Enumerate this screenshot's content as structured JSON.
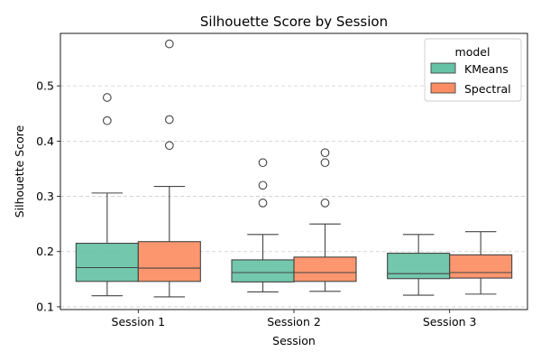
{
  "chart_data": {
    "type": "box",
    "title": "Silhouette Score by Session",
    "xlabel": "Session",
    "ylabel": "Silhouette Score",
    "categories": [
      "Session 1",
      "Session 2",
      "Session 3"
    ],
    "ylim": [
      0.095,
      0.595
    ],
    "yticks": [
      0.1,
      0.2,
      0.3,
      0.4,
      0.5
    ],
    "grid": "y-dashed",
    "legend": {
      "title": "model",
      "position": "top-right"
    },
    "series": [
      {
        "name": "KMeans",
        "color": "#66c2a5",
        "boxes": [
          {
            "whislo": 0.12,
            "q1": 0.146,
            "median": 0.171,
            "q3": 0.215,
            "whishi": 0.306,
            "fliers": [
              0.479,
              0.437
            ]
          },
          {
            "whislo": 0.127,
            "q1": 0.145,
            "median": 0.162,
            "q3": 0.185,
            "whishi": 0.231,
            "fliers": [
              0.361,
              0.32,
              0.288
            ]
          },
          {
            "whislo": 0.121,
            "q1": 0.151,
            "median": 0.16,
            "q3": 0.197,
            "whishi": 0.231,
            "fliers": []
          }
        ]
      },
      {
        "name": "Spectral",
        "color": "#fc8d62",
        "boxes": [
          {
            "whislo": 0.118,
            "q1": 0.146,
            "median": 0.17,
            "q3": 0.218,
            "whishi": 0.318,
            "fliers": [
              0.576,
              0.439,
              0.392
            ]
          },
          {
            "whislo": 0.128,
            "q1": 0.146,
            "median": 0.162,
            "q3": 0.19,
            "whishi": 0.25,
            "fliers": [
              0.379,
              0.361,
              0.288
            ]
          },
          {
            "whislo": 0.123,
            "q1": 0.152,
            "median": 0.162,
            "q3": 0.194,
            "whishi": 0.236,
            "fliers": []
          }
        ]
      }
    ]
  }
}
